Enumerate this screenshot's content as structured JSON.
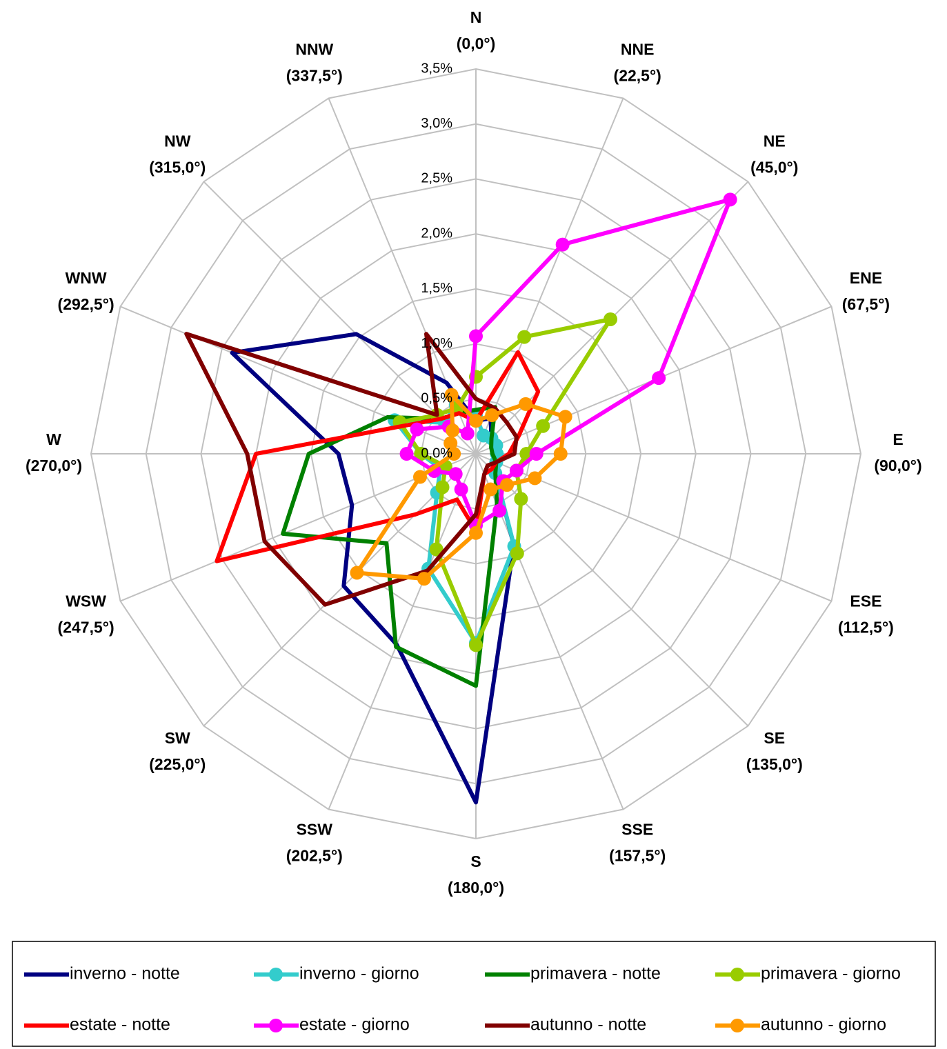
{
  "chart_data": {
    "type": "radar",
    "categories": [
      "N",
      "NNE",
      "NE",
      "ENE",
      "E",
      "ESE",
      "SE",
      "SSE",
      "S",
      "SSW",
      "SW",
      "WSW",
      "W",
      "WNW",
      "NW",
      "NNW"
    ],
    "category_angles": [
      "(0,0°)",
      "(22,5°)",
      "(45,0°)",
      "(67,5°)",
      "(90,0°)",
      "(112,5°)",
      "(135,0°)",
      "(157,5°)",
      "(180,0°)",
      "(202,5°)",
      "(225,0°)",
      "(247,5°)",
      "(270,0°)",
      "(292,5°)",
      "(315,0°)",
      "(337,5°)"
    ],
    "ylim": [
      0,
      3.5
    ],
    "yticks": [
      {
        "value": 0,
        "label": "0,0%"
      },
      {
        "value": 0.5,
        "label": "0,5%"
      },
      {
        "value": 1,
        "label": "1,0%"
      },
      {
        "value": 1.5,
        "label": "1,5%"
      },
      {
        "value": 2,
        "label": "2,0%"
      },
      {
        "value": 2.5,
        "label": "2,5%"
      },
      {
        "value": 3,
        "label": "3,0%"
      },
      {
        "value": 3.5,
        "label": "3,5%"
      }
    ],
    "grid": true,
    "legend": "bottom",
    "series": [
      {
        "name": "inverno - notte",
        "color": "#000080",
        "marker": false,
        "values": [
          0.3,
          0.35,
          0.2,
          0.2,
          0.2,
          0.2,
          0.25,
          0.9,
          3.17,
          1.88,
          1.7,
          1.22,
          1.25,
          2.4,
          1.54,
          0.7
        ]
      },
      {
        "name": "inverno - giorno",
        "color": "#33cccc",
        "marker": true,
        "values": [
          0.35,
          0.18,
          0.2,
          0.2,
          0.19,
          0.2,
          0.25,
          0.91,
          1.72,
          1.13,
          0.5,
          0.35,
          0.5,
          0.8,
          0.4,
          0.48
        ]
      },
      {
        "name": "primavera - notte",
        "color": "#008000",
        "marker": false,
        "values": [
          0.4,
          0.46,
          0.2,
          0.15,
          0.15,
          0.2,
          0.25,
          0.5,
          2.11,
          1.9,
          1.15,
          1.9,
          1.52,
          0.87,
          0.45,
          0.4
        ]
      },
      {
        "name": "primavera - giorno",
        "color": "#99cc00",
        "marker": true,
        "values": [
          0.7,
          1.15,
          1.73,
          0.66,
          0.46,
          0.4,
          0.58,
          0.98,
          1.74,
          0.94,
          0.43,
          0.3,
          0.5,
          0.75,
          0.5,
          0.45
        ]
      },
      {
        "name": "estate - notte",
        "color": "#ff0000",
        "marker": false,
        "values": [
          0.3,
          1.0,
          0.8,
          0.42,
          0.3,
          0.2,
          0.2,
          0.2,
          0.7,
          0.45,
          0.78,
          2.55,
          2.0,
          0.68,
          0.45,
          0.4
        ]
      },
      {
        "name": "estate - giorno",
        "color": "#ff00ff",
        "marker": true,
        "values": [
          1.07,
          2.06,
          3.27,
          1.8,
          0.55,
          0.4,
          0.35,
          0.56,
          0.65,
          0.35,
          0.26,
          0.41,
          0.63,
          0.58,
          0.35,
          0.2
        ]
      },
      {
        "name": "autunno - notte",
        "color": "#800000",
        "marker": false,
        "values": [
          0.5,
          0.45,
          0.4,
          0.4,
          0.35,
          0.2,
          0.15,
          0.2,
          0.55,
          1.15,
          1.94,
          2.08,
          2.08,
          2.85,
          0.5,
          1.18
        ]
      },
      {
        "name": "autunno - giorno",
        "color": "#ff9900",
        "marker": true,
        "values": [
          0.3,
          0.38,
          0.64,
          0.88,
          0.77,
          0.58,
          0.4,
          0.35,
          0.72,
          1.23,
          1.53,
          0.55,
          0.2,
          0.25,
          0.3,
          0.58
        ]
      }
    ]
  }
}
